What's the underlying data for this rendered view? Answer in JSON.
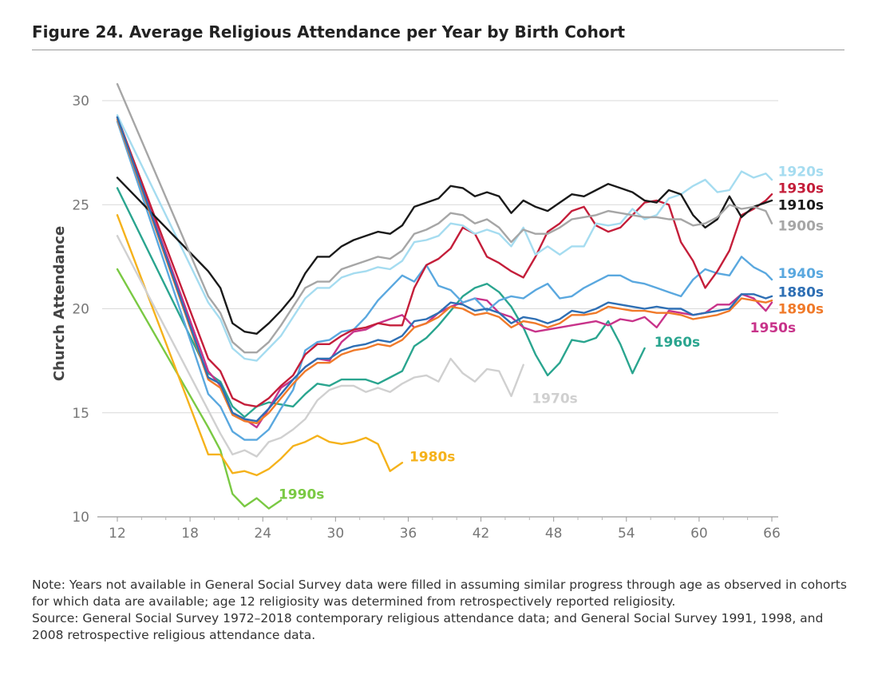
{
  "figure": {
    "title": "Figure 24. Average Religious Attendance per Year by Birth Cohort",
    "note": "Note: Years not available in General Social Survey data were filled in assuming similar progress through age as observed in cohorts for which data are available; age 12 religiosity was determined from retrospectively reported religiosity.",
    "source": "Source: General Social Survey 1972–2018 contemporary religious attendance data; and General Social Survey 1991, 1998, and 2008 retrospective religious attendance data."
  },
  "chart_data": {
    "type": "line",
    "ylabel": "Church Attendance",
    "xlabel": "",
    "xlim": [
      11,
      66.5
    ],
    "ylim": [
      10,
      31
    ],
    "xticks": [
      12,
      18,
      24,
      30,
      36,
      42,
      48,
      54,
      60,
      66
    ],
    "yticks": [
      10,
      15,
      20,
      25,
      30
    ],
    "grid": "horizontal",
    "series": [
      {
        "name": "1990s",
        "color": "#7ac943",
        "x": [
          12,
          19.5,
          20.5,
          21.5,
          22.5,
          23.5,
          24.5,
          25.5
        ],
        "y": [
          21.9,
          14.3,
          13.2,
          11.1,
          10.5,
          10.9,
          10.4,
          10.8
        ]
      },
      {
        "name": "1980s",
        "color": "#f5b21b",
        "x": [
          12,
          19.5,
          20.5,
          21.5,
          22.5,
          23.5,
          24.5,
          25.5,
          26.5,
          27.5,
          28.5,
          29.5,
          30.5,
          31.5,
          32.5,
          33.5,
          34.5,
          35.5
        ],
        "y": [
          24.5,
          13.0,
          13.0,
          12.1,
          12.2,
          12.0,
          12.3,
          12.8,
          13.4,
          13.6,
          13.9,
          13.6,
          13.5,
          13.6,
          13.8,
          13.5,
          12.2,
          12.6
        ]
      },
      {
        "name": "1970s",
        "color": "#d0d0d0",
        "x": [
          12,
          20.5,
          21.5,
          22.5,
          23.5,
          24.5,
          25.5,
          26.5,
          27.5,
          28.5,
          29.5,
          30.5,
          31.5,
          32.5,
          33.5,
          34.5,
          35.5,
          36.5,
          37.5,
          38.5,
          39.5,
          40.5,
          41.5,
          42.5,
          43.5,
          44.5,
          45.5
        ],
        "y": [
          23.5,
          14.0,
          13.0,
          13.2,
          12.9,
          13.6,
          13.8,
          14.2,
          14.7,
          15.6,
          16.1,
          16.3,
          16.3,
          16.0,
          16.2,
          16.0,
          16.4,
          16.7,
          16.8,
          16.5,
          17.6,
          16.9,
          16.5,
          17.1,
          17.0,
          15.8,
          17.3
        ]
      },
      {
        "name": "1960s",
        "color": "#2aa58f",
        "x": [
          12,
          19.5,
          20.5,
          21.5,
          22.5,
          23.5,
          24.5,
          25.5,
          26.5,
          27.5,
          28.5,
          29.5,
          30.5,
          31.5,
          32.5,
          33.5,
          34.5,
          35.5,
          36.5,
          37.5,
          38.5,
          39.5,
          40.5,
          41.5,
          42.5,
          43.5,
          44.5,
          45.5,
          46.5,
          47.5,
          48.5,
          49.5,
          50.5,
          51.5,
          52.5,
          53.5,
          54.5,
          55.5
        ],
        "y": [
          25.8,
          16.9,
          16.5,
          15.3,
          14.8,
          15.3,
          15.5,
          15.4,
          15.3,
          15.9,
          16.4,
          16.3,
          16.6,
          16.6,
          16.6,
          16.4,
          16.7,
          17.0,
          18.2,
          18.6,
          19.2,
          19.9,
          20.6,
          21.0,
          21.2,
          20.8,
          20.1,
          19.1,
          17.8,
          16.8,
          17.4,
          18.5,
          18.4,
          18.6,
          19.4,
          18.3,
          16.9,
          18.1
        ]
      },
      {
        "name": "1950s",
        "color": "#c8338a",
        "x": [
          12,
          19.5,
          20.5,
          21.5,
          22.5,
          23.5,
          24.5,
          25.5,
          26.5,
          27.5,
          28.5,
          29.5,
          30.5,
          31.5,
          32.5,
          33.5,
          34.5,
          35.5,
          36.5,
          37.5,
          38.5,
          39.5,
          40.5,
          41.5,
          42.5,
          43.5,
          44.5,
          45.5,
          46.5,
          47.5,
          48.5,
          49.5,
          50.5,
          51.5,
          52.5,
          53.5,
          54.5,
          55.5,
          56.5,
          57.5,
          58.5,
          59.5,
          60.5,
          61.5,
          62.5,
          63.5,
          64.5,
          65.5,
          66
        ],
        "y": [
          29.2,
          17.0,
          16.3,
          15.0,
          14.7,
          14.3,
          15.2,
          16.2,
          16.6,
          17.2,
          17.6,
          17.5,
          18.4,
          18.9,
          19.0,
          19.3,
          19.5,
          19.7,
          19.1,
          19.3,
          19.8,
          20.1,
          20.3,
          20.5,
          20.4,
          19.8,
          19.6,
          19.1,
          18.9,
          19.0,
          19.1,
          19.2,
          19.3,
          19.4,
          19.2,
          19.5,
          19.4,
          19.6,
          19.1,
          19.9,
          19.8,
          19.7,
          19.8,
          20.2,
          20.2,
          20.7,
          20.5,
          19.9,
          20.3
        ]
      },
      {
        "name": "1940s",
        "color": "#5aa8df",
        "x": [
          12,
          19.5,
          20.5,
          21.5,
          22.5,
          23.5,
          24.5,
          25.5,
          26.5,
          27.5,
          28.5,
          29.5,
          30.5,
          31.5,
          32.5,
          33.5,
          34.5,
          35.5,
          36.5,
          37.5,
          38.5,
          39.5,
          40.5,
          41.5,
          42.5,
          43.5,
          44.5,
          45.5,
          46.5,
          47.5,
          48.5,
          49.5,
          50.5,
          51.5,
          52.5,
          53.5,
          54.5,
          55.5,
          56.5,
          57.5,
          58.5,
          59.5,
          60.5,
          61.5,
          62.5,
          63.5,
          64.5,
          65.5,
          66
        ],
        "y": [
          29.0,
          15.9,
          15.3,
          14.1,
          13.7,
          13.7,
          14.2,
          15.2,
          16.1,
          18.0,
          18.4,
          18.5,
          18.9,
          19.0,
          19.6,
          20.4,
          21.0,
          21.6,
          21.3,
          22.1,
          21.1,
          20.9,
          20.3,
          20.5,
          19.9,
          20.4,
          20.6,
          20.5,
          20.9,
          21.2,
          20.5,
          20.6,
          21.0,
          21.3,
          21.6,
          21.6,
          21.3,
          21.2,
          21.0,
          20.8,
          20.6,
          21.4,
          21.9,
          21.7,
          21.6,
          22.5,
          22.0,
          21.7,
          21.4
        ]
      },
      {
        "name": "1930s",
        "color": "#c41e3a",
        "x": [
          12,
          19.5,
          20.5,
          21.5,
          22.5,
          23.5,
          24.5,
          25.5,
          26.5,
          27.5,
          28.5,
          29.5,
          30.5,
          31.5,
          32.5,
          33.5,
          34.5,
          35.5,
          36.5,
          37.5,
          38.5,
          39.5,
          40.5,
          41.5,
          42.5,
          43.5,
          44.5,
          45.5,
          46.5,
          47.5,
          48.5,
          49.5,
          50.5,
          51.5,
          52.5,
          53.5,
          54.5,
          55.5,
          56.5,
          57.5,
          58.5,
          59.5,
          60.5,
          61.5,
          62.5,
          63.5,
          64.5,
          65.5,
          66
        ],
        "y": [
          29.2,
          17.6,
          17.0,
          15.7,
          15.4,
          15.3,
          15.7,
          16.3,
          16.8,
          17.8,
          18.3,
          18.3,
          18.7,
          19.0,
          19.1,
          19.3,
          19.2,
          19.2,
          21.0,
          22.1,
          22.4,
          22.9,
          23.9,
          23.6,
          22.5,
          22.2,
          21.8,
          21.5,
          22.5,
          23.7,
          24.1,
          24.7,
          24.9,
          24.0,
          23.7,
          23.9,
          24.5,
          25.1,
          25.2,
          25.0,
          23.2,
          22.3,
          21.0,
          21.8,
          22.8,
          24.5,
          24.8,
          25.2,
          25.5
        ]
      },
      {
        "name": "1920s",
        "color": "#a5dcf0",
        "x": [
          12,
          19.5,
          20.5,
          21.5,
          22.5,
          23.5,
          24.5,
          25.5,
          26.5,
          27.5,
          28.5,
          29.5,
          30.5,
          31.5,
          32.5,
          33.5,
          34.5,
          35.5,
          36.5,
          37.5,
          38.5,
          39.5,
          40.5,
          41.5,
          42.5,
          43.5,
          44.5,
          45.5,
          46.5,
          47.5,
          48.5,
          49.5,
          50.5,
          51.5,
          52.5,
          53.5,
          54.5,
          55.5,
          56.5,
          57.5,
          58.5,
          59.5,
          60.5,
          61.5,
          62.5,
          63.5,
          64.5,
          65.5,
          66
        ],
        "y": [
          29.3,
          20.3,
          19.5,
          18.1,
          17.6,
          17.5,
          18.1,
          18.7,
          19.6,
          20.5,
          21.0,
          21.0,
          21.5,
          21.7,
          21.8,
          22.0,
          21.9,
          22.3,
          23.2,
          23.3,
          23.5,
          24.1,
          24.0,
          23.6,
          23.8,
          23.6,
          23.0,
          23.9,
          22.6,
          23.0,
          22.6,
          23.0,
          23.0,
          24.1,
          24.0,
          24.1,
          24.8,
          24.3,
          24.5,
          25.3,
          25.5,
          25.9,
          26.2,
          25.6,
          25.7,
          26.6,
          26.3,
          26.5,
          26.2
        ]
      },
      {
        "name": "1910s",
        "color": "#1a1a1a",
        "x": [
          12,
          19.5,
          20.5,
          21.5,
          22.5,
          23.5,
          24.5,
          25.5,
          26.5,
          27.5,
          28.5,
          29.5,
          30.5,
          31.5,
          32.5,
          33.5,
          34.5,
          35.5,
          36.5,
          37.5,
          38.5,
          39.5,
          40.5,
          41.5,
          42.5,
          43.5,
          44.5,
          45.5,
          46.5,
          47.5,
          48.5,
          49.5,
          50.5,
          51.5,
          52.5,
          53.5,
          54.5,
          55.5,
          56.5,
          57.5,
          58.5,
          59.5,
          60.5,
          61.5,
          62.5,
          63.5,
          64.5,
          65.5,
          66
        ],
        "y": [
          26.3,
          21.8,
          21.0,
          19.3,
          18.9,
          18.8,
          19.3,
          19.9,
          20.6,
          21.7,
          22.5,
          22.5,
          23.0,
          23.3,
          23.5,
          23.7,
          23.6,
          24.0,
          24.9,
          25.1,
          25.3,
          25.9,
          25.8,
          25.4,
          25.6,
          25.4,
          24.6,
          25.2,
          24.9,
          24.7,
          25.1,
          25.5,
          25.4,
          25.7,
          26.0,
          25.8,
          25.6,
          25.2,
          25.1,
          25.7,
          25.5,
          24.5,
          23.9,
          24.3,
          25.4,
          24.4,
          24.9,
          25.1,
          25.2
        ]
      },
      {
        "name": "1900s",
        "color": "#a6a6a6",
        "x": [
          12,
          19.5,
          20.5,
          21.5,
          22.5,
          23.5,
          24.5,
          25.5,
          26.5,
          27.5,
          28.5,
          29.5,
          30.5,
          31.5,
          32.5,
          33.5,
          34.5,
          35.5,
          36.5,
          37.5,
          38.5,
          39.5,
          40.5,
          41.5,
          42.5,
          43.5,
          44.5,
          45.5,
          46.5,
          47.5,
          48.5,
          49.5,
          50.5,
          51.5,
          52.5,
          53.5,
          54.5,
          55.5,
          56.5,
          57.5,
          58.5,
          59.5,
          60.5,
          61.5,
          62.5,
          63.5,
          64.5,
          65.5,
          66
        ],
        "y": [
          30.8,
          20.6,
          19.8,
          18.4,
          17.9,
          17.9,
          18.4,
          19.2,
          20.1,
          21.0,
          21.3,
          21.3,
          21.9,
          22.1,
          22.3,
          22.5,
          22.4,
          22.8,
          23.6,
          23.8,
          24.1,
          24.6,
          24.5,
          24.1,
          24.3,
          23.9,
          23.2,
          23.8,
          23.6,
          23.6,
          23.9,
          24.3,
          24.4,
          24.5,
          24.7,
          24.6,
          24.5,
          24.4,
          24.4,
          24.3,
          24.3,
          24.0,
          24.1,
          24.4,
          25.0,
          24.8,
          24.9,
          24.7,
          24.1
        ]
      },
      {
        "name": "1890s",
        "color": "#f07a2a",
        "x": [
          12,
          19.5,
          20.5,
          21.5,
          22.5,
          23.5,
          24.5,
          25.5,
          26.5,
          27.5,
          28.5,
          29.5,
          30.5,
          31.5,
          32.5,
          33.5,
          34.5,
          35.5,
          36.5,
          37.5,
          38.5,
          39.5,
          40.5,
          41.5,
          42.5,
          43.5,
          44.5,
          45.5,
          46.5,
          47.5,
          48.5,
          49.5,
          50.5,
          51.5,
          52.5,
          53.5,
          54.5,
          55.5,
          56.5,
          57.5,
          58.5,
          59.5,
          60.5,
          61.5,
          62.5,
          63.5,
          64.5,
          65.5,
          66
        ],
        "y": [
          29.1,
          16.6,
          16.2,
          14.9,
          14.6,
          14.5,
          15.0,
          15.7,
          16.4,
          17.0,
          17.4,
          17.4,
          17.8,
          18.0,
          18.1,
          18.3,
          18.2,
          18.5,
          19.1,
          19.3,
          19.6,
          20.1,
          20.0,
          19.7,
          19.8,
          19.6,
          19.1,
          19.4,
          19.3,
          19.1,
          19.3,
          19.7,
          19.7,
          19.8,
          20.1,
          20.0,
          19.9,
          19.9,
          19.8,
          19.8,
          19.7,
          19.5,
          19.6,
          19.7,
          19.9,
          20.5,
          20.4,
          20.3,
          20.4
        ]
      },
      {
        "name": "1880s",
        "color": "#2e6fb4",
        "x": [
          12,
          19.5,
          20.5,
          21.5,
          22.5,
          23.5,
          24.5,
          25.5,
          26.5,
          27.5,
          28.5,
          29.5,
          30.5,
          31.5,
          32.5,
          33.5,
          34.5,
          35.5,
          36.5,
          37.5,
          38.5,
          39.5,
          40.5,
          41.5,
          42.5,
          43.5,
          44.5,
          45.5,
          46.5,
          47.5,
          48.5,
          49.5,
          50.5,
          51.5,
          52.5,
          53.5,
          54.5,
          55.5,
          56.5,
          57.5,
          58.5,
          59.5,
          60.5,
          61.5,
          62.5,
          63.5,
          64.5,
          65.5,
          66
        ],
        "y": [
          29.2,
          16.7,
          16.4,
          15.0,
          14.7,
          14.6,
          15.2,
          15.9,
          16.6,
          17.2,
          17.6,
          17.6,
          18.0,
          18.2,
          18.3,
          18.5,
          18.4,
          18.7,
          19.4,
          19.5,
          19.8,
          20.3,
          20.2,
          19.9,
          20.0,
          19.8,
          19.3,
          19.6,
          19.5,
          19.3,
          19.5,
          19.9,
          19.8,
          20.0,
          20.3,
          20.2,
          20.1,
          20.0,
          20.1,
          20.0,
          20.0,
          19.7,
          19.8,
          19.9,
          20.0,
          20.7,
          20.7,
          20.5,
          20.6
        ]
      }
    ],
    "labels": [
      {
        "text": "1920s",
        "series": "1920s",
        "x": 66.5,
        "y": 26.6
      },
      {
        "text": "1930s",
        "series": "1930s",
        "x": 66.5,
        "y": 25.8
      },
      {
        "text": "1910s",
        "series": "1910s",
        "x": 66.5,
        "y": 25.0
      },
      {
        "text": "1900s",
        "series": "1900s",
        "x": 66.5,
        "y": 24.0
      },
      {
        "text": "1940s",
        "series": "1940s",
        "x": 66.5,
        "y": 21.7
      },
      {
        "text": "1880s",
        "series": "1880s",
        "x": 66.5,
        "y": 20.8
      },
      {
        "text": "1890s",
        "series": "1890s",
        "x": 66.5,
        "y": 20.0
      },
      {
        "text": "1950s",
        "series": "1950s",
        "x": 64.2,
        "y": 19.1
      },
      {
        "text": "1960s",
        "series": "1960s",
        "x": 56.3,
        "y": 18.4
      },
      {
        "text": "1970s",
        "series": "1970s",
        "x": 46.2,
        "y": 15.7
      },
      {
        "text": "1980s",
        "series": "1980s",
        "x": 36.1,
        "y": 12.9
      },
      {
        "text": "1990s",
        "series": "1990s",
        "x": 25.3,
        "y": 11.1
      }
    ]
  }
}
